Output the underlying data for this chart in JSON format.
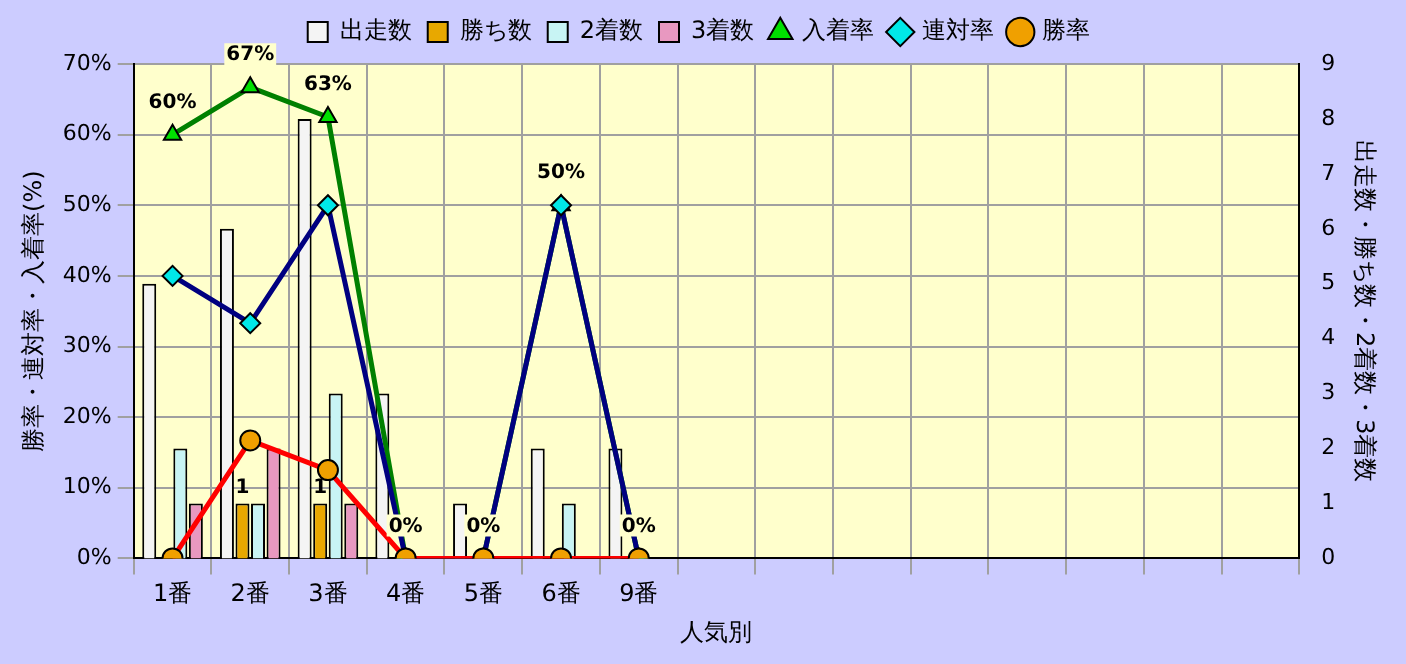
{
  "chart_data": {
    "type": "bar",
    "xlabel": "人気別",
    "ylabel": "勝率・連対率・入着率(%)",
    "y2label": "出走数・勝ち数・2着数・3着数",
    "categories": [
      "1番",
      "2番",
      "3番",
      "4番",
      "5番",
      "6番",
      "9番",
      null,
      null,
      null,
      null,
      null,
      null,
      null,
      null
    ],
    "series": [
      {
        "name": "出走数",
        "axis": "y2",
        "color": "#f4f4f4",
        "values": [
          5,
          6,
          8,
          3,
          1,
          2,
          2,
          null,
          null,
          null,
          null,
          null,
          null,
          null,
          null
        ]
      },
      {
        "name": "勝ち数",
        "axis": "y2",
        "color": "#e8a800",
        "values": [
          0,
          1,
          1,
          0,
          0,
          0,
          0,
          null,
          null,
          null,
          null,
          null,
          null,
          null,
          null
        ],
        "value_labels": [
          null,
          "1",
          "1",
          null,
          null,
          null,
          null,
          null,
          null,
          null,
          null,
          null,
          null,
          null,
          null
        ]
      },
      {
        "name": "2着数",
        "axis": "y2",
        "color": "#c8f4f4",
        "values": [
          2,
          1,
          3,
          0,
          0,
          1,
          0,
          null,
          null,
          null,
          null,
          null,
          null,
          null,
          null
        ]
      },
      {
        "name": "3着数",
        "axis": "y2",
        "color": "#e898c0",
        "values": [
          1,
          2,
          1,
          0,
          0,
          0,
          0,
          null,
          null,
          null,
          null,
          null,
          null,
          null,
          null
        ]
      },
      {
        "name": "入着率",
        "type": "line",
        "color": "#008000",
        "marker": "triangle",
        "colors": [
          "#00e000",
          "#00e000",
          "#00e000",
          "#00e000",
          "#00e000",
          "#00e000",
          "#00e000",
          null,
          null,
          null,
          null,
          null,
          null,
          null,
          null
        ],
        "values": [
          60,
          66.7,
          62.5,
          0,
          0,
          50,
          0,
          null,
          null,
          null,
          null,
          null,
          null,
          null,
          null
        ],
        "value_labels": [
          "60%",
          "67%",
          "63%",
          "0%",
          "0%",
          "50%",
          "0%",
          null,
          null,
          null,
          null,
          null,
          null,
          null,
          null
        ]
      },
      {
        "name": "連対率",
        "type": "line",
        "color": "#000080",
        "marker": "diamond",
        "colors": [
          "#00e8e8",
          "#00e8e8",
          "#00e8e8",
          "#00e8e8",
          "#00e8e8",
          "#00e8e8",
          "#00e8e8",
          null,
          null,
          null,
          null,
          null,
          null,
          null,
          null
        ],
        "values": [
          40,
          33.3,
          50,
          0,
          0,
          50,
          0,
          null,
          null,
          null,
          null,
          null,
          null,
          null,
          null
        ]
      },
      {
        "name": "勝率",
        "type": "line",
        "color": "#ff0000",
        "marker": "circle",
        "colors": [
          "#f0a000",
          "#f0a000",
          "#f0a000",
          "#f0a000",
          "#f0a000",
          "#f0a000",
          "#f0a000",
          null,
          null,
          null,
          null,
          null,
          null,
          null,
          null
        ],
        "values": [
          0,
          16.7,
          12.5,
          0,
          0,
          0,
          0,
          null,
          null,
          null,
          null,
          null,
          null,
          null,
          null
        ]
      }
    ],
    "ylim": [
      0,
      70
    ],
    "yticks": [
      {
        "value": 0,
        "label": "0%"
      },
      {
        "value": 10,
        "label": "10%"
      },
      {
        "value": 20,
        "label": "20%"
      },
      {
        "value": 30,
        "label": "30%"
      },
      {
        "value": 40,
        "label": "40%"
      },
      {
        "value": 50,
        "label": "50%"
      },
      {
        "value": 60,
        "label": "60%"
      },
      {
        "value": 70,
        "label": "70%"
      }
    ],
    "y2lim": [
      0,
      9
    ],
    "y2ticks": [
      0,
      1,
      2,
      3,
      4,
      5,
      6,
      7,
      8,
      9
    ],
    "grid": true,
    "legend": "top"
  }
}
